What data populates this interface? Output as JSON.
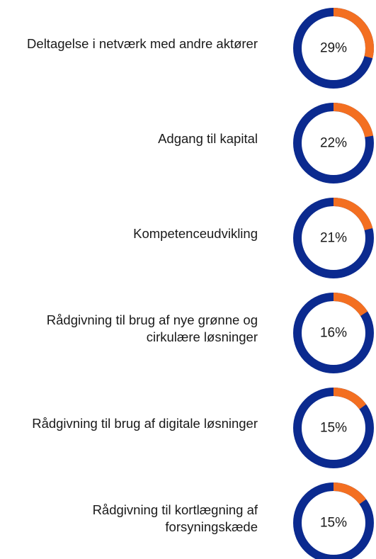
{
  "chart_data": {
    "type": "donut",
    "categories": [
      "Deltagelse i netværk med andre aktører",
      "Adgang til kapital",
      "Kompetenceudvikling",
      "Rådgivning til brug af nye grønne og cirkulære løsninger",
      "Rådgivning til brug af digitale løsninger",
      "Rådgivning til kortlægning af forsyningskæde"
    ],
    "values": [
      29,
      22,
      21,
      16,
      15,
      15
    ],
    "value_labels": [
      "29%",
      "22%",
      "21%",
      "16%",
      "15%",
      "15%"
    ],
    "color": "#f36f21",
    "track_color": "#0b2a8f"
  }
}
